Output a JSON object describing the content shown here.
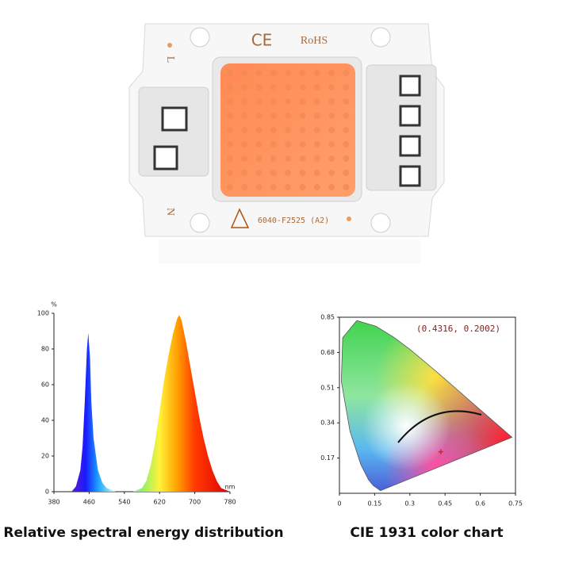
{
  "product": {
    "marks": [
      "CE",
      "RoHS"
    ],
    "model": "6040-F2525 (A2)",
    "terminals": [
      "L",
      "N"
    ]
  },
  "chart_data": [
    {
      "type": "area",
      "caption": "Relative spectral energy distribution",
      "ylabel": "%",
      "xlabel": "nm",
      "x": [
        400,
        420,
        430,
        440,
        445,
        450,
        455,
        458,
        462,
        465,
        470,
        480,
        490,
        500,
        520,
        540,
        560,
        580,
        590,
        600,
        610,
        620,
        630,
        640,
        650,
        660,
        665,
        670,
        680,
        690,
        700,
        710,
        720,
        730,
        740,
        750,
        760,
        770,
        780
      ],
      "values": [
        0,
        0,
        3,
        12,
        25,
        50,
        80,
        89,
        75,
        50,
        30,
        12,
        5,
        2,
        0,
        0,
        0,
        2,
        6,
        15,
        28,
        45,
        62,
        76,
        88,
        97,
        99,
        96,
        84,
        70,
        56,
        42,
        30,
        20,
        12,
        6,
        2,
        1,
        0
      ],
      "xlim": [
        380,
        780
      ],
      "xticks": [
        380,
        460,
        540,
        620,
        700,
        780
      ],
      "ylim": [
        0,
        100
      ],
      "yticks": [
        0,
        20,
        40,
        60,
        80,
        100
      ]
    },
    {
      "type": "scatter",
      "caption": "CIE 1931 color chart",
      "annotation": "(0.4316, 0.2002)",
      "x": [
        0.4316
      ],
      "values": [
        0.2002
      ],
      "color": "#e0201c",
      "xlim": [
        0,
        0.75
      ],
      "xticks": [
        0,
        0.15,
        0.3,
        0.45,
        0.6,
        0.75
      ],
      "ylim": [
        0,
        0.85
      ],
      "yticks": [
        0.17,
        0.34,
        0.51,
        0.68,
        0.85
      ]
    }
  ]
}
